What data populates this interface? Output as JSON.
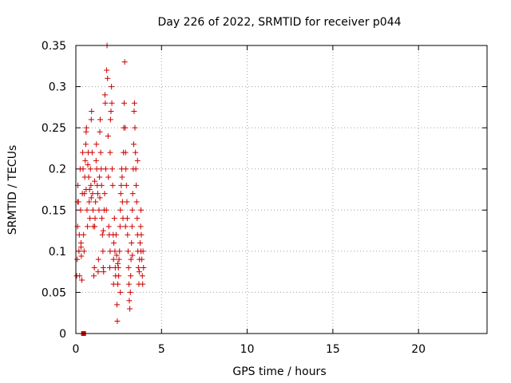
{
  "chart_data": {
    "type": "scatter",
    "title": "Day 226 of 2022, SRMTID for receiver p044",
    "xlabel": "GPS time / hours",
    "ylabel": "SRMTID / TECUs",
    "xlim": [
      0,
      24
    ],
    "ylim": [
      0,
      0.35
    ],
    "x_ticks": [
      0,
      5,
      10,
      15,
      20
    ],
    "x_tick_labels": [
      "0",
      "5",
      "10",
      "15",
      "20"
    ],
    "y_ticks": [
      0,
      0.05,
      0.1,
      0.15,
      0.2,
      0.25,
      0.3,
      0.35
    ],
    "y_tick_labels": [
      "0",
      "0.05",
      "0.1",
      "0.15",
      "0.2",
      "0.25",
      "0.3",
      "0.35"
    ],
    "grid": true,
    "marker": "plus",
    "marker_color": "#cc0000",
    "grid_color": "#a0a0a0",
    "series": [
      {
        "name": "SRMTID",
        "points": [
          [
            0.05,
            0.07
          ],
          [
            0.08,
            0.09
          ],
          [
            0.1,
            0.13
          ],
          [
            0.12,
            0.18
          ],
          [
            0.15,
            0.16
          ],
          [
            0.18,
            0.1
          ],
          [
            0.2,
            0.12
          ],
          [
            0.22,
            0.07
          ],
          [
            0.25,
            0.2
          ],
          [
            0.28,
            0.15
          ],
          [
            0.3,
            0.11
          ],
          [
            0.32,
            0.094
          ],
          [
            0.35,
            0.065
          ],
          [
            0.38,
            0.17
          ],
          [
            0.4,
            0.22
          ],
          [
            0.42,
            0.2
          ],
          [
            0.45,
            0.12
          ],
          [
            0.48,
            0.1
          ],
          [
            0.5,
            0.17
          ],
          [
            0.52,
            0.19
          ],
          [
            0.55,
            0.21
          ],
          [
            0.58,
            0.23
          ],
          [
            0.6,
            0.245
          ],
          [
            0.62,
            0.25
          ],
          [
            0.65,
            0.15
          ],
          [
            0.68,
            0.13
          ],
          [
            0.7,
            0.205
          ],
          [
            0.72,
            0.22
          ],
          [
            0.75,
            0.19
          ],
          [
            0.78,
            0.16
          ],
          [
            0.8,
            0.175
          ],
          [
            0.82,
            0.14
          ],
          [
            0.85,
            0.2
          ],
          [
            0.88,
            0.18
          ],
          [
            0.9,
            0.26
          ],
          [
            0.92,
            0.27
          ],
          [
            0.95,
            0.22
          ],
          [
            0.98,
            0.17
          ],
          [
            1.0,
            0.15
          ],
          [
            1.02,
            0.13
          ],
          [
            1.05,
            0.07
          ],
          [
            1.08,
            0.08
          ],
          [
            1.1,
            0.13
          ],
          [
            1.12,
            0.14
          ],
          [
            1.15,
            0.16
          ],
          [
            1.18,
            0.21
          ],
          [
            1.2,
            0.23
          ],
          [
            1.22,
            0.2
          ],
          [
            1.25,
            0.18
          ],
          [
            1.28,
            0.17
          ],
          [
            1.3,
            0.075
          ],
          [
            1.32,
            0.09
          ],
          [
            1.35,
            0.15
          ],
          [
            1.38,
            0.19
          ],
          [
            1.4,
            0.245
          ],
          [
            1.42,
            0.26
          ],
          [
            1.45,
            0.22
          ],
          [
            1.48,
            0.2
          ],
          [
            1.5,
            0.18
          ],
          [
            1.52,
            0.14
          ],
          [
            1.55,
            0.12
          ],
          [
            1.58,
            0.1
          ],
          [
            1.6,
            0.08
          ],
          [
            1.62,
            0.075
          ],
          [
            1.65,
            0.15
          ],
          [
            1.68,
            0.17
          ],
          [
            1.7,
            0.29
          ],
          [
            1.72,
            0.28
          ],
          [
            1.75,
            0.2
          ],
          [
            1.78,
            0.15
          ],
          [
            1.8,
            0.32
          ],
          [
            1.82,
            0.35
          ],
          [
            1.85,
            0.31
          ],
          [
            1.88,
            0.24
          ],
          [
            1.9,
            0.19
          ],
          [
            1.92,
            0.13
          ],
          [
            1.95,
            0.12
          ],
          [
            1.98,
            0.08
          ],
          [
            2.0,
            0.1
          ],
          [
            2.02,
            0.26
          ],
          [
            2.05,
            0.27
          ],
          [
            2.08,
            0.3
          ],
          [
            2.1,
            0.28
          ],
          [
            2.12,
            0.2
          ],
          [
            2.15,
            0.18
          ],
          [
            2.18,
            0.12
          ],
          [
            2.2,
            0.09
          ],
          [
            2.22,
            0.11
          ],
          [
            2.25,
            0.14
          ],
          [
            2.28,
            0.1
          ],
          [
            2.3,
            0.08
          ],
          [
            2.32,
            0.07
          ],
          [
            2.35,
            0.12
          ],
          [
            2.38,
            0.095
          ],
          [
            2.4,
            0.035
          ],
          [
            2.42,
            0.015
          ],
          [
            2.45,
            0.06
          ],
          [
            2.48,
            0.08
          ],
          [
            2.5,
            0.07
          ],
          [
            2.52,
            0.09
          ],
          [
            2.55,
            0.1
          ],
          [
            2.58,
            0.13
          ],
          [
            2.6,
            0.15
          ],
          [
            2.62,
            0.17
          ],
          [
            2.65,
            0.18
          ],
          [
            2.68,
            0.2
          ],
          [
            2.7,
            0.19
          ],
          [
            2.72,
            0.16
          ],
          [
            2.75,
            0.14
          ],
          [
            2.78,
            0.22
          ],
          [
            2.8,
            0.25
          ],
          [
            2.82,
            0.28
          ],
          [
            2.85,
            0.33
          ],
          [
            2.88,
            0.25
          ],
          [
            2.9,
            0.22
          ],
          [
            2.92,
            0.2
          ],
          [
            2.95,
            0.18
          ],
          [
            2.98,
            0.16
          ],
          [
            3.0,
            0.14
          ],
          [
            3.02,
            0.12
          ],
          [
            3.05,
            0.1
          ],
          [
            3.08,
            0.08
          ],
          [
            3.1,
            0.06
          ],
          [
            3.12,
            0.04
          ],
          [
            3.15,
            0.03
          ],
          [
            3.18,
            0.05
          ],
          [
            3.2,
            0.07
          ],
          [
            3.22,
            0.09
          ],
          [
            3.25,
            0.11
          ],
          [
            3.28,
            0.13
          ],
          [
            3.3,
            0.15
          ],
          [
            3.32,
            0.17
          ],
          [
            3.35,
            0.2
          ],
          [
            3.38,
            0.23
          ],
          [
            3.4,
            0.27
          ],
          [
            3.42,
            0.28
          ],
          [
            3.45,
            0.25
          ],
          [
            3.48,
            0.22
          ],
          [
            3.5,
            0.2
          ],
          [
            3.52,
            0.18
          ],
          [
            3.55,
            0.16
          ],
          [
            3.58,
            0.14
          ],
          [
            3.6,
            0.12
          ],
          [
            3.62,
            0.1
          ],
          [
            3.65,
            0.08
          ],
          [
            3.68,
            0.06
          ],
          [
            3.7,
            0.075
          ],
          [
            3.72,
            0.09
          ],
          [
            3.75,
            0.11
          ],
          [
            3.78,
            0.13
          ],
          [
            3.8,
            0.15
          ],
          [
            3.82,
            0.12
          ],
          [
            3.85,
            0.09
          ],
          [
            3.88,
            0.07
          ],
          [
            3.9,
            0.06
          ],
          [
            3.92,
            0.1
          ],
          [
            3.95,
            0.08
          ],
          [
            0.1,
            0.16
          ],
          [
            0.3,
            0.105
          ],
          [
            0.6,
            0.175
          ],
          [
            0.9,
            0.165
          ],
          [
            1.1,
            0.185
          ],
          [
            1.4,
            0.165
          ],
          [
            1.6,
            0.125
          ],
          [
            2.0,
            0.22
          ],
          [
            2.2,
            0.06
          ],
          [
            2.45,
            0.085
          ],
          [
            2.6,
            0.05
          ],
          [
            2.9,
            0.13
          ],
          [
            3.3,
            0.095
          ],
          [
            3.6,
            0.21
          ],
          [
            3.8,
            0.1
          ]
        ]
      },
      {
        "name": "marker-at-zero",
        "points": [
          [
            0.45,
            0.0
          ]
        ]
      }
    ]
  }
}
